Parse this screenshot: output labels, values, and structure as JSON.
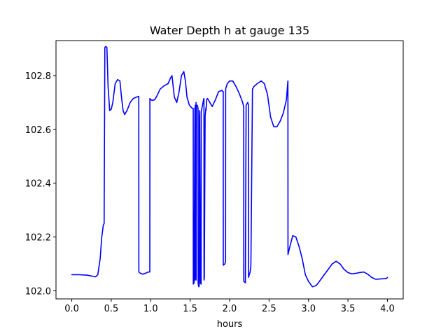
{
  "chart_data": {
    "type": "line",
    "title": "Water Depth h at gauge 135",
    "xlabel": "hours",
    "ylabel": "",
    "xlim": [
      -0.2,
      4.2
    ],
    "ylim": [
      101.97,
      102.93
    ],
    "xticks": [
      0.0,
      0.5,
      1.0,
      1.5,
      2.0,
      2.5,
      3.0,
      3.5,
      4.0
    ],
    "xtick_labels": [
      "0.0",
      "0.5",
      "1.0",
      "1.5",
      "2.0",
      "2.5",
      "3.0",
      "3.5",
      "4.0"
    ],
    "yticks": [
      102.0,
      102.2,
      102.4,
      102.6,
      102.8
    ],
    "ytick_labels": [
      "102.0",
      "102.2",
      "102.4",
      "102.6",
      "102.8"
    ],
    "grid": false,
    "color": "#0000ff",
    "series": [
      {
        "x": [
          0.0,
          0.1,
          0.2,
          0.3,
          0.33,
          0.36,
          0.38,
          0.4,
          0.41,
          0.419,
          0.42,
          0.43,
          0.445,
          0.46,
          0.48,
          0.5,
          0.52,
          0.55,
          0.58,
          0.61,
          0.63,
          0.65,
          0.67,
          0.7,
          0.74,
          0.78,
          0.82,
          0.849,
          0.85,
          0.87,
          0.9,
          0.93,
          0.97,
          0.989,
          0.99,
          1.0,
          1.02,
          1.05,
          1.08,
          1.12,
          1.17,
          1.22,
          1.25,
          1.27,
          1.3,
          1.33,
          1.36,
          1.39,
          1.42,
          1.44,
          1.46,
          1.49,
          1.52,
          1.539,
          1.54,
          1.55,
          1.56,
          1.561,
          1.565,
          1.57,
          1.575,
          1.576,
          1.58,
          1.59,
          1.6,
          1.601,
          1.605,
          1.61,
          1.615,
          1.616,
          1.62,
          1.63,
          1.639,
          1.64,
          1.66,
          1.67,
          1.675,
          1.676,
          1.68,
          1.69,
          1.7,
          1.701,
          1.71,
          1.72,
          1.75,
          1.78,
          1.82,
          1.86,
          1.9,
          1.919,
          1.92,
          1.94,
          1.949,
          1.95,
          1.97,
          2.0,
          2.04,
          2.08,
          2.12,
          2.16,
          2.179,
          2.18,
          2.2,
          2.209,
          2.21,
          2.23,
          2.239,
          2.24,
          2.26,
          2.269,
          2.27,
          2.29,
          2.31,
          2.35,
          2.4,
          2.44,
          2.48,
          2.52,
          2.56,
          2.6,
          2.64,
          2.68,
          2.72,
          2.739,
          2.74,
          2.76,
          2.8,
          2.84,
          2.88,
          2.92,
          2.96,
          3.0,
          3.05,
          3.1,
          3.15,
          3.2,
          3.25,
          3.3,
          3.35,
          3.4,
          3.45,
          3.5,
          3.55,
          3.6,
          3.65,
          3.7,
          3.75,
          3.8,
          3.85,
          3.9,
          3.95,
          3.99,
          4.0
        ],
        "y": [
          102.06,
          102.06,
          102.058,
          102.052,
          102.06,
          102.12,
          102.2,
          102.245,
          102.25,
          102.9,
          102.905,
          102.908,
          102.905,
          102.76,
          102.67,
          102.675,
          102.7,
          102.77,
          102.785,
          102.78,
          102.72,
          102.67,
          102.655,
          102.67,
          102.7,
          102.715,
          102.72,
          102.723,
          102.07,
          102.065,
          102.062,
          102.065,
          102.07,
          102.07,
          102.715,
          102.71,
          102.708,
          102.71,
          102.725,
          102.75,
          102.762,
          102.77,
          102.79,
          102.8,
          102.72,
          102.7,
          102.74,
          102.8,
          102.815,
          102.78,
          102.72,
          102.69,
          102.68,
          102.678,
          102.025,
          102.03,
          102.68,
          102.04,
          102.69,
          102.05,
          102.7,
          102.04,
          102.69,
          102.69,
          102.68,
          102.03,
          102.02,
          102.015,
          102.02,
          102.67,
          102.65,
          102.03,
          102.025,
          102.665,
          102.695,
          102.71,
          102.715,
          102.04,
          102.05,
          102.65,
          102.68,
          102.67,
          102.71,
          102.715,
          102.7,
          102.685,
          102.71,
          102.74,
          102.745,
          102.74,
          102.095,
          102.1,
          102.11,
          102.75,
          102.77,
          102.78,
          102.78,
          102.76,
          102.735,
          102.705,
          102.685,
          102.035,
          102.03,
          102.68,
          102.69,
          102.7,
          102.69,
          102.05,
          102.07,
          102.09,
          102.1,
          102.75,
          102.76,
          102.77,
          102.78,
          102.77,
          102.73,
          102.645,
          102.61,
          102.61,
          102.63,
          102.66,
          102.71,
          102.78,
          102.135,
          102.16,
          102.205,
          102.2,
          102.165,
          102.12,
          102.06,
          102.035,
          102.015,
          102.02,
          102.04,
          102.06,
          102.08,
          102.1,
          102.11,
          102.1,
          102.08,
          102.068,
          102.063,
          102.065,
          102.068,
          102.07,
          102.062,
          102.05,
          102.043,
          102.044,
          102.045,
          102.046,
          102.05
        ]
      }
    ]
  }
}
